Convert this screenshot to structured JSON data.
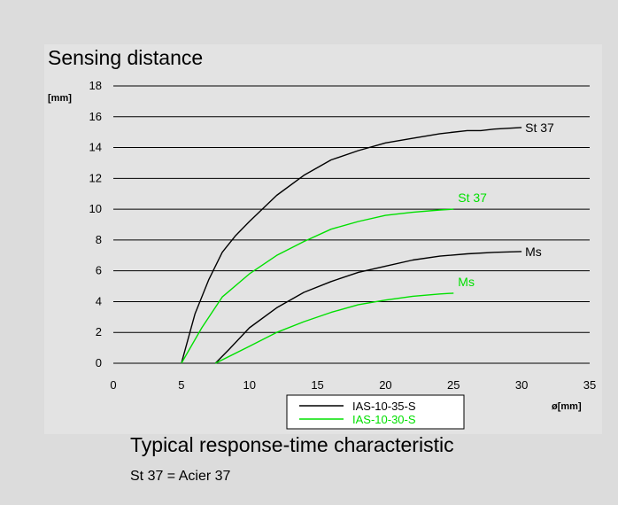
{
  "page": {
    "title": "Sensing distance",
    "footer_title": "Typical response-time characteristic",
    "footer_note": "St 37 = Acier 37"
  },
  "chart_data": {
    "type": "line",
    "title": "Sensing distance",
    "xlabel": "ø[mm]",
    "ylabel": "[mm]",
    "xlim": [
      0,
      35
    ],
    "ylim": [
      0,
      18
    ],
    "xticks": [
      0,
      5,
      10,
      15,
      20,
      25,
      30,
      35
    ],
    "yticks": [
      0,
      2,
      4,
      6,
      8,
      10,
      12,
      14,
      16,
      18
    ],
    "grid": "horizontal",
    "legend": "bottom",
    "series": [
      {
        "name": "IAS-10-35-S",
        "color": "#000000",
        "label": "St 37",
        "x": [
          5,
          6,
          7,
          8,
          9,
          10,
          12,
          14,
          16,
          18,
          20,
          22,
          24,
          26,
          27,
          28,
          30
        ],
        "y": [
          0,
          3.2,
          5.4,
          7.2,
          8.3,
          9.2,
          10.9,
          12.2,
          13.2,
          13.8,
          14.3,
          14.6,
          14.9,
          15.1,
          15.1,
          15.2,
          15.3
        ]
      },
      {
        "name": "IAS-10-30-S",
        "color": "#00e000",
        "label": "St 37",
        "x": [
          5,
          6.5,
          8,
          10,
          12,
          14,
          16,
          18,
          20,
          22,
          24,
          25
        ],
        "y": [
          0,
          2.3,
          4.3,
          5.8,
          7.0,
          7.9,
          8.7,
          9.2,
          9.6,
          9.8,
          9.95,
          10.0
        ]
      },
      {
        "name": "IAS-10-35-S",
        "color": "#000000",
        "label": "Ms",
        "x": [
          7.5,
          8.5,
          10,
          12,
          14,
          16,
          18,
          20,
          22,
          24,
          26,
          28,
          30
        ],
        "y": [
          0,
          0.9,
          2.3,
          3.6,
          4.6,
          5.3,
          5.9,
          6.3,
          6.7,
          6.95,
          7.1,
          7.2,
          7.25
        ]
      },
      {
        "name": "IAS-10-30-S",
        "color": "#00e000",
        "label": "Ms",
        "x": [
          7.5,
          10,
          12,
          14,
          16,
          18,
          20,
          22,
          24,
          25
        ],
        "y": [
          0,
          1.1,
          2.0,
          2.7,
          3.3,
          3.8,
          4.1,
          4.35,
          4.5,
          4.55
        ]
      }
    ],
    "legend_entries": [
      {
        "name": "IAS-10-35-S",
        "color": "#000000"
      },
      {
        "name": "IAS-10-30-S",
        "color": "#00e000"
      }
    ]
  }
}
